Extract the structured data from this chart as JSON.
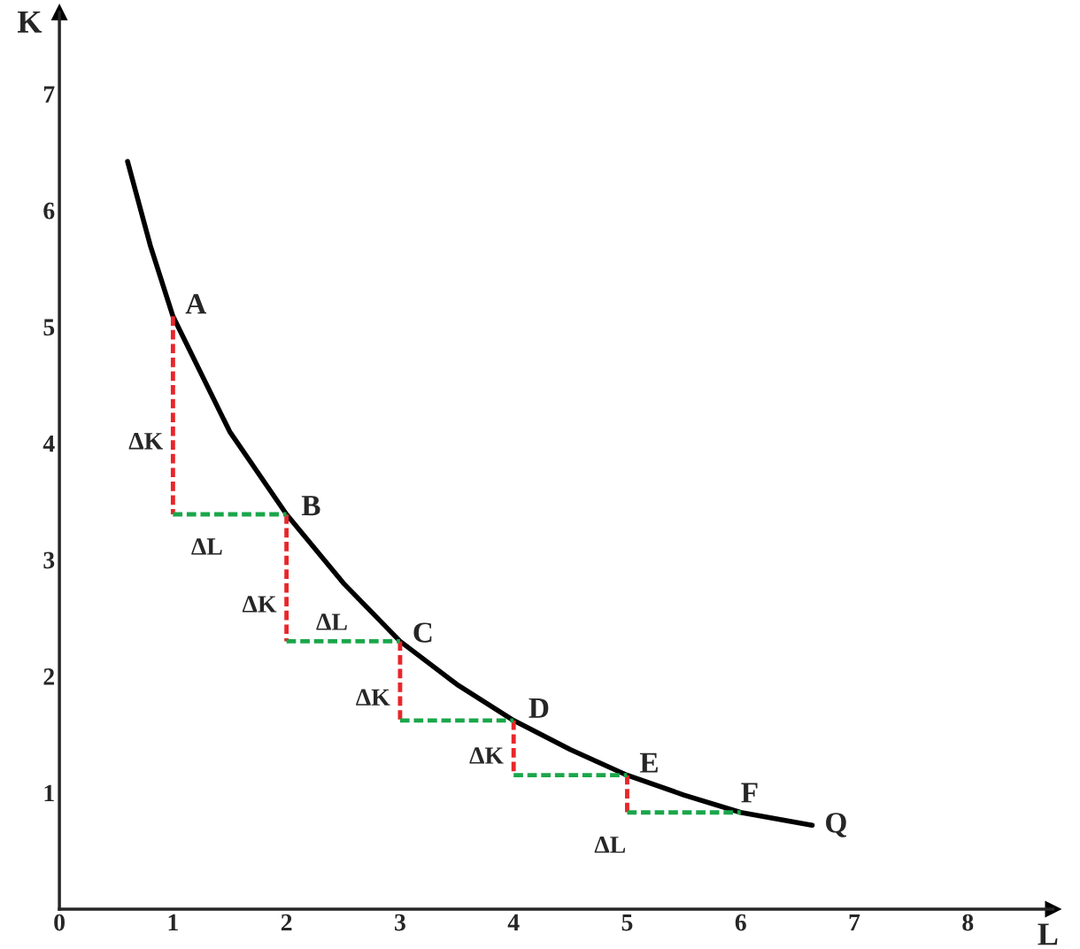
{
  "chart_data": {
    "type": "line",
    "xlabel": "L",
    "ylabel": "K",
    "xlim": [
      0,
      8.75
    ],
    "ylim": [
      0,
      7.7
    ],
    "xticks": [
      0,
      1,
      2,
      3,
      4,
      5,
      6,
      7,
      8
    ],
    "yticks": [
      1,
      2,
      3,
      4,
      5,
      6,
      7
    ],
    "grid": false,
    "legend": false,
    "series": [
      {
        "color": "#000000",
        "line_style": "solid",
        "x": [
          0.6,
          0.8,
          1,
          1.5,
          2,
          2.5,
          3,
          3.5,
          4,
          4.5,
          5,
          5.5,
          6,
          6.63
        ],
        "values": [
          6.42,
          5.7,
          5.09,
          4.1,
          3.39,
          2.8,
          2.3,
          1.93,
          1.62,
          1.37,
          1.15,
          0.98,
          0.83,
          0.72
        ]
      },
      {
        "color": "#e8262a",
        "line_style": "dashed",
        "x": [
          1,
          1,
          null,
          2,
          2,
          null,
          3,
          3,
          null,
          4,
          4,
          null,
          5,
          5
        ],
        "values": [
          5.09,
          3.39,
          null,
          3.39,
          2.3,
          null,
          2.3,
          1.62,
          null,
          1.62,
          1.15,
          null,
          1.15,
          0.83
        ]
      },
      {
        "color": "#1aa64a",
        "line_style": "dashed",
        "x": [
          1,
          2,
          null,
          2,
          3,
          null,
          3,
          4,
          null,
          4,
          5,
          null,
          5,
          6
        ],
        "values": [
          3.39,
          3.39,
          null,
          2.3,
          2.3,
          null,
          1.62,
          1.62,
          null,
          1.15,
          1.15,
          null,
          0.83,
          0.83
        ]
      }
    ],
    "annotations": [
      {
        "text": "A",
        "x": 1.0,
        "y": 5.09
      },
      {
        "text": "B",
        "x": 2.0,
        "y": 3.39
      },
      {
        "text": "C",
        "x": 3.0,
        "y": 2.3
      },
      {
        "text": "D",
        "x": 4.0,
        "y": 1.62
      },
      {
        "text": "E",
        "x": 5.0,
        "y": 1.15
      },
      {
        "text": "F",
        "x": 6.0,
        "y": 0.83
      },
      {
        "text": "Q",
        "x": 6.63,
        "y": 0.72
      },
      {
        "text": "ΔK",
        "x": 1,
        "y": 4.0
      },
      {
        "text": "ΔK",
        "x": 2,
        "y": 2.6
      },
      {
        "text": "ΔK",
        "x": 3,
        "y": 1.8
      },
      {
        "text": "ΔK",
        "x": 4,
        "y": 1.3
      },
      {
        "text": "ΔL",
        "x": 1.3,
        "y": 3.39
      },
      {
        "text": "ΔL",
        "x": 2.4,
        "y": 2.3
      },
      {
        "text": "ΔL",
        "x": 5.5,
        "y": 0.83
      }
    ]
  }
}
